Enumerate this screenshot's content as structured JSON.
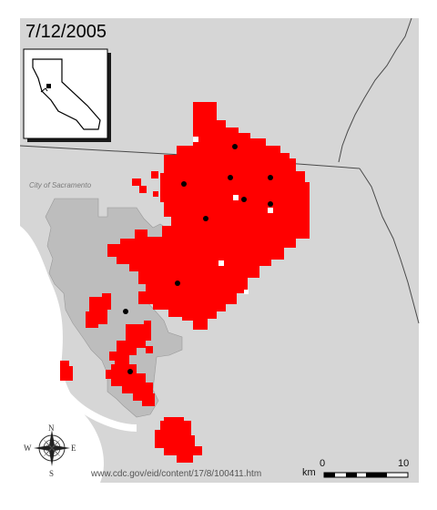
{
  "date_label": "7/12/2005",
  "city_label": "City of Sacramento",
  "source_url": "www.cdc.gov/eid/content/17/8/100411.htm",
  "compass": {
    "north": "N",
    "south": "S",
    "east": "E",
    "west": "W"
  },
  "scale_bar": {
    "unit": "km",
    "min_label": "0",
    "max_label": "10"
  },
  "colors": {
    "background_land": "#d6d6d6",
    "city_area": "#bdbdbd",
    "affected_area": "#ff0000",
    "points": "#000000",
    "water": "#ffffff",
    "boundary": "#4a4a4a"
  },
  "icons": [
    "compass-rose-icon",
    "california-inset-icon"
  ]
}
